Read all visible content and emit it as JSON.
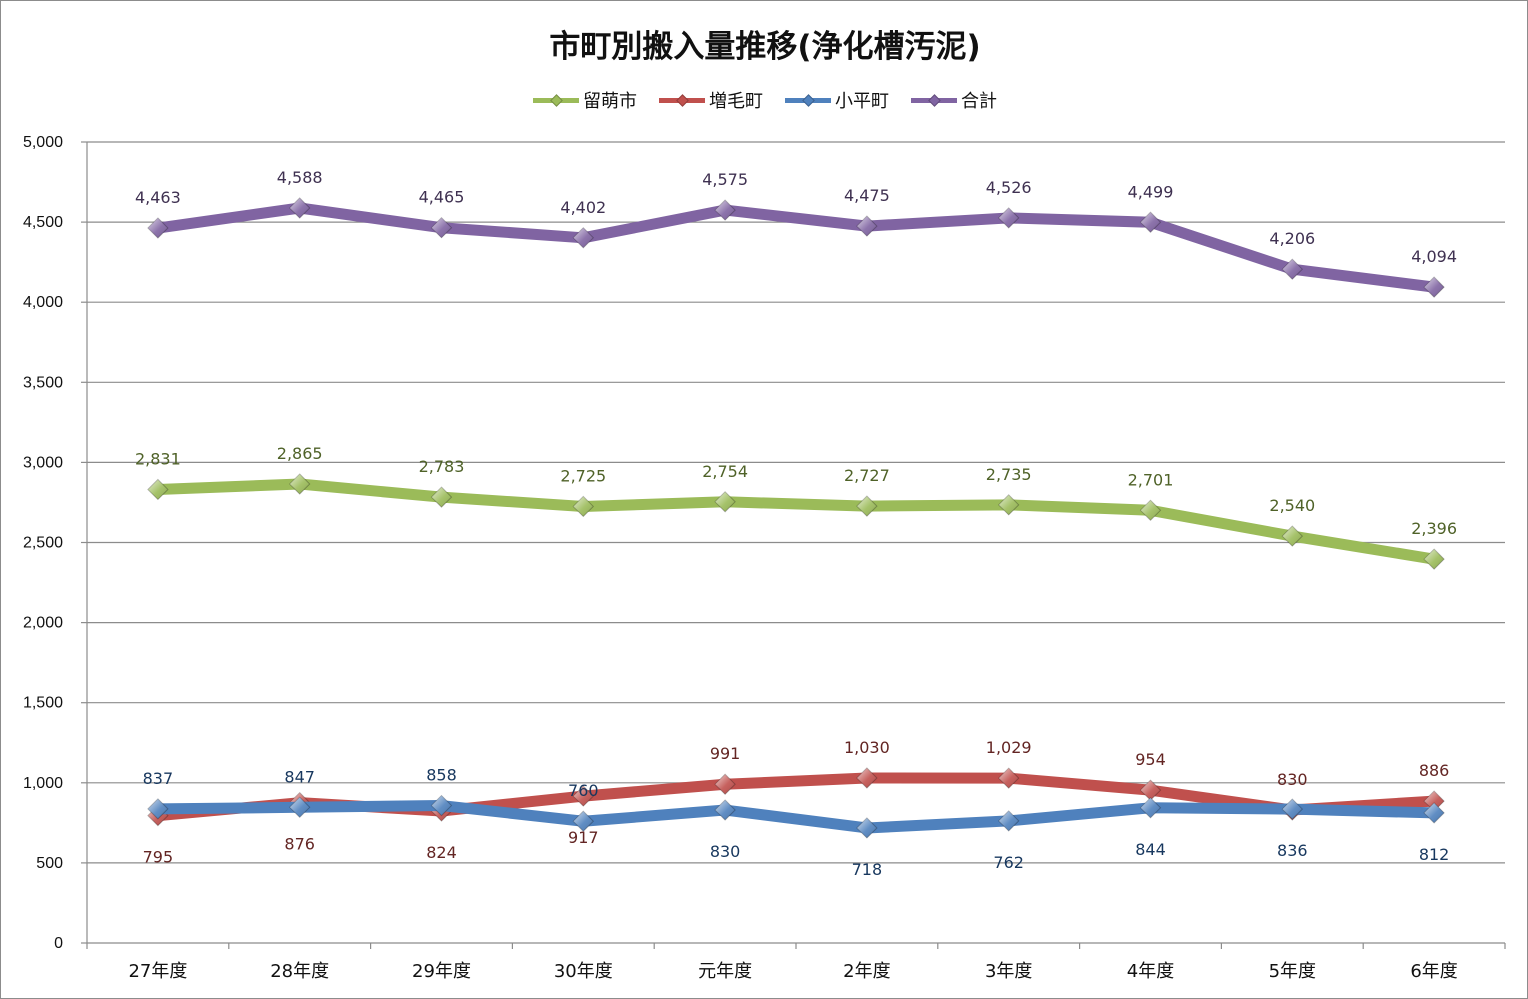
{
  "chart_data": {
    "type": "line",
    "title": "市町別搬入量推移(浄化槽汚泥)",
    "categories": [
      "27年度",
      "28年度",
      "29年度",
      "30年度",
      "元年度",
      "2年度",
      "3年度",
      "4年度",
      "5年度",
      "6年度"
    ],
    "ylim": [
      0,
      5000
    ],
    "yticks": [
      0,
      500,
      1000,
      1500,
      2000,
      2500,
      3000,
      3500,
      4000,
      4500,
      5000
    ],
    "ytick_labels": [
      "0",
      "500",
      "1,000",
      "1,500",
      "2,000",
      "2,500",
      "3,000",
      "3,500",
      "4,000",
      "4,500",
      "5,000"
    ],
    "grid": true,
    "legend_position": "top",
    "series": [
      {
        "name": "留萌市",
        "color": "#9bbb59",
        "label_color": "#4f6228",
        "values": [
          2831,
          2865,
          2783,
          2725,
          2754,
          2727,
          2735,
          2701,
          2540,
          2396
        ],
        "labels": [
          "2,831",
          "2,865",
          "2,783",
          "2,725",
          "2,754",
          "2,727",
          "2,735",
          "2,701",
          "2,540",
          "2,396"
        ],
        "label_side": [
          "above",
          "above",
          "above",
          "above",
          "above",
          "above",
          "above",
          "above",
          "above",
          "above"
        ]
      },
      {
        "name": "増毛町",
        "color": "#c0504d",
        "label_color": "#632523",
        "values": [
          795,
          876,
          824,
          917,
          991,
          1030,
          1029,
          954,
          830,
          886
        ],
        "labels": [
          "795",
          "876",
          "824",
          "917",
          "991",
          "1,030",
          "1,029",
          "954",
          "830",
          "886"
        ],
        "label_side": [
          "below",
          "below",
          "below",
          "below",
          "above",
          "above",
          "above",
          "above",
          "above",
          "above"
        ]
      },
      {
        "name": "小平町",
        "color": "#4f81bd",
        "label_color": "#17375e",
        "values": [
          837,
          847,
          858,
          760,
          830,
          718,
          762,
          844,
          836,
          812
        ],
        "labels": [
          "837",
          "847",
          "858",
          "760",
          "830",
          "718",
          "762",
          "844",
          "836",
          "812"
        ],
        "label_side": [
          "above",
          "above",
          "above",
          "above",
          "below",
          "below",
          "below",
          "below",
          "below",
          "below"
        ]
      },
      {
        "name": "合計",
        "color": "#8064a2",
        "label_color": "#3f3151",
        "values": [
          4463,
          4588,
          4465,
          4402,
          4575,
          4475,
          4526,
          4499,
          4206,
          4094
        ],
        "labels": [
          "4,463",
          "4,588",
          "4,465",
          "4,402",
          "4,575",
          "4,475",
          "4,526",
          "4,499",
          "4,206",
          "4,094"
        ],
        "label_side": [
          "above",
          "above",
          "above",
          "above",
          "above",
          "above",
          "above",
          "above",
          "above",
          "above"
        ]
      }
    ]
  }
}
